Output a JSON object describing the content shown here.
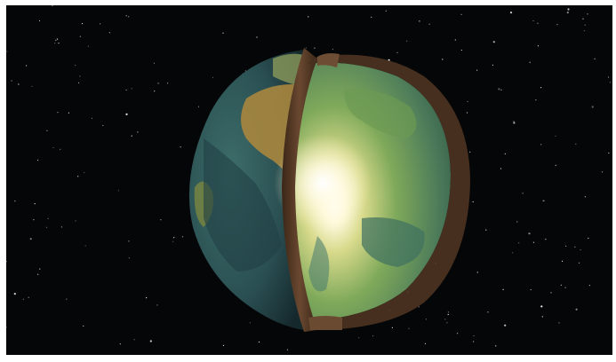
{
  "scene": {
    "subject": "planet-earth-cutaway",
    "background": "starfield",
    "colors": {
      "space": "#050608",
      "ocean": "#2e5a5a",
      "land_warm": "#a8863e",
      "land_green": "#6f9a4a",
      "inner_glow": "#ffffff",
      "shell_edge": "#5a3a24"
    }
  }
}
